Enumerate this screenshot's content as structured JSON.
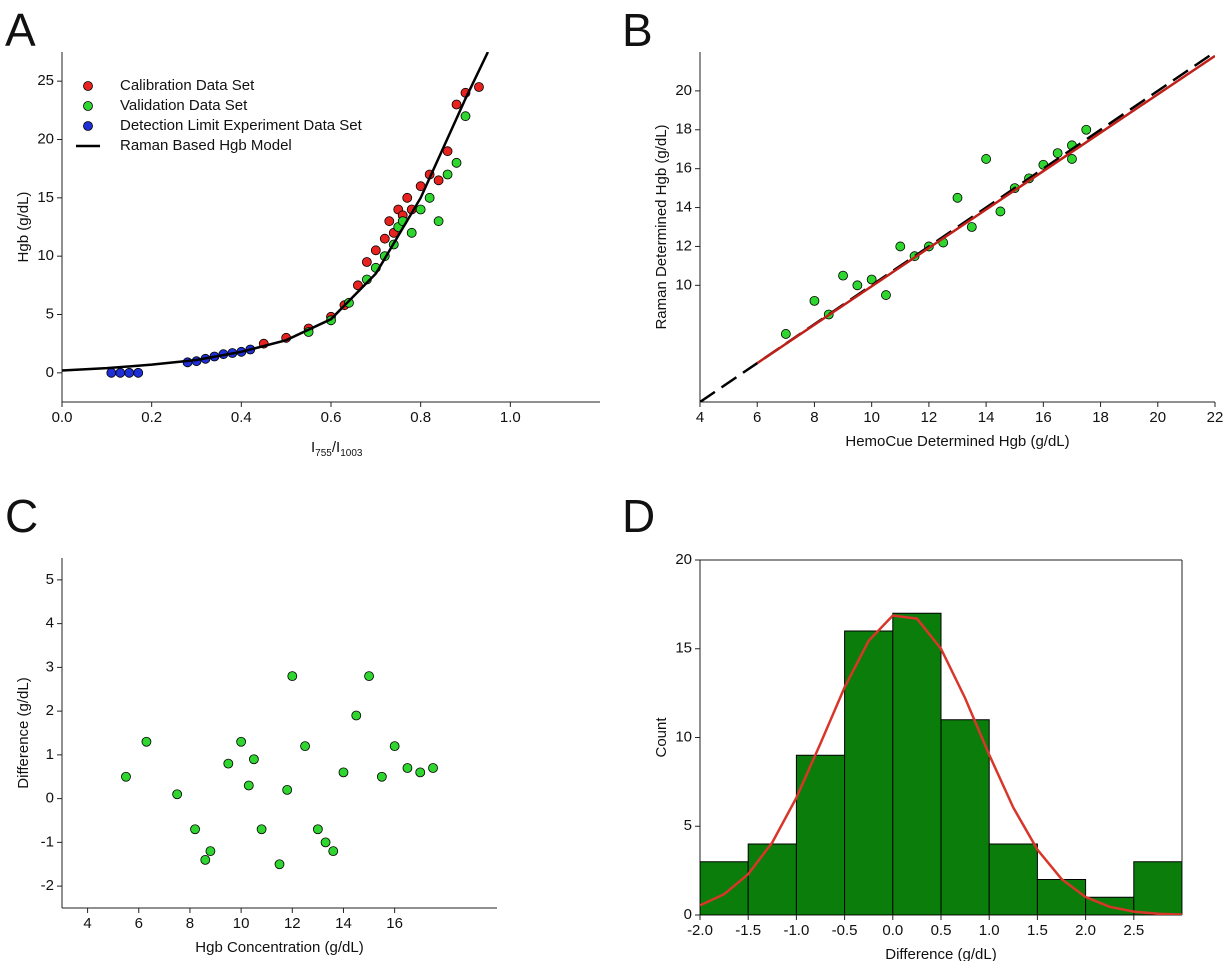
{
  "chart_data": [
    {
      "type": "scatter",
      "panel": "A",
      "xlabel_parts": [
        "I",
        "755",
        "/I",
        "1003"
      ],
      "ylabel": "Hgb (g/dL)",
      "xlim": [
        0,
        1.2
      ],
      "ylim": [
        -2.5,
        27.5
      ],
      "xticks": [
        {
          "value": 0,
          "label": "0.0"
        },
        {
          "value": 0.2,
          "label": "0.2"
        },
        {
          "value": 0.4,
          "label": "0.4"
        },
        {
          "value": 0.6,
          "label": "0.6"
        },
        {
          "value": 0.8,
          "label": "0.8"
        },
        {
          "value": 1,
          "label": "1.0"
        }
      ],
      "yticks": [
        0,
        5,
        10,
        15,
        20,
        25
      ],
      "legend": "upper left",
      "grid": false,
      "series": [
        {
          "name": "Calibration Data Set",
          "kind": "scatter",
          "color": "#e8231f",
          "x": [
            0.45,
            0.5,
            0.55,
            0.6,
            0.63,
            0.66,
            0.68,
            0.7,
            0.72,
            0.73,
            0.74,
            0.75,
            0.76,
            0.77,
            0.78,
            0.8,
            0.82,
            0.84,
            0.86,
            0.88,
            0.9,
            0.93
          ],
          "values": [
            2.5,
            3.0,
            3.8,
            4.8,
            5.8,
            7.5,
            9.5,
            10.5,
            11.5,
            13,
            12,
            14,
            13.5,
            15,
            14,
            16,
            17,
            16.5,
            19,
            23,
            24,
            24.5
          ]
        },
        {
          "name": "Validation Data Set",
          "kind": "scatter",
          "color": "#2fd62f",
          "x": [
            0.55,
            0.6,
            0.64,
            0.68,
            0.7,
            0.72,
            0.74,
            0.75,
            0.76,
            0.78,
            0.8,
            0.82,
            0.84,
            0.86,
            0.88,
            0.9
          ],
          "values": [
            3.5,
            4.5,
            6,
            8,
            9,
            10,
            11,
            12.5,
            13,
            12,
            14,
            15,
            13,
            17,
            18,
            22
          ]
        },
        {
          "name": "Detection Limit Experiment Data Set",
          "kind": "scatter",
          "color": "#1f2fd6",
          "x": [
            0.11,
            0.13,
            0.15,
            0.17,
            0.28,
            0.3,
            0.32,
            0.34,
            0.36,
            0.38,
            0.4,
            0.42
          ],
          "values": [
            0,
            0,
            0,
            0,
            0.9,
            1.0,
            1.2,
            1.4,
            1.6,
            1.7,
            1.8,
            2.0
          ]
        },
        {
          "name": "Raman Based Hgb Model",
          "kind": "line",
          "color": "#000000",
          "x": [
            0,
            0.1,
            0.2,
            0.3,
            0.4,
            0.5,
            0.6,
            0.7,
            0.8,
            0.9,
            0.95
          ],
          "values": [
            0.2,
            0.4,
            0.7,
            1.1,
            1.8,
            2.8,
            4.6,
            8.5,
            15,
            23.5,
            27.5
          ]
        }
      ]
    },
    {
      "type": "scatter",
      "panel": "B",
      "xlabel": "HemoCue Determined Hgb (g/dL)",
      "ylabel": "Raman Determined Hgb (g/dL)",
      "xlim": [
        4,
        22
      ],
      "ylim": [
        4,
        22
      ],
      "xticks": [
        4,
        6,
        8,
        10,
        12,
        14,
        16,
        18,
        20,
        22
      ],
      "yticks": [
        10,
        12,
        14,
        16,
        18,
        20
      ],
      "grid": false,
      "series": [
        {
          "kind": "scatter",
          "color": "#2fd62f",
          "x": [
            7,
            8,
            8.5,
            9,
            9.5,
            10,
            10.5,
            11,
            11.5,
            12,
            12.5,
            13,
            13.5,
            14,
            14.5,
            15,
            15.5,
            16,
            16.5,
            17,
            17,
            17.5
          ],
          "values": [
            7.5,
            9.2,
            8.5,
            10.5,
            10,
            10.3,
            9.5,
            12,
            11.5,
            12,
            12.2,
            14.5,
            13,
            16.5,
            13.8,
            15,
            15.5,
            16.2,
            16.8,
            17.2,
            16.5,
            18
          ]
        },
        {
          "kind": "line",
          "dash": true,
          "color": "#000000",
          "x": [
            4,
            22
          ],
          "values": [
            4,
            22
          ]
        },
        {
          "kind": "line",
          "color": "#c0201a",
          "x": [
            6,
            22
          ],
          "values": [
            6,
            21.8
          ]
        }
      ]
    },
    {
      "type": "scatter",
      "panel": "C",
      "xlabel": "Hgb Concentration (g/dL)",
      "ylabel": "Difference (g/dL)",
      "xlim": [
        3,
        20
      ],
      "ylim": [
        -2.5,
        5.5
      ],
      "xticks": [
        4,
        6,
        8,
        10,
        12,
        14,
        16
      ],
      "yticks": [
        -2,
        -1,
        0,
        1,
        2,
        3,
        4,
        5
      ],
      "grid": false,
      "series": [
        {
          "kind": "scatter",
          "color": "#2fd62f",
          "x": [
            5.5,
            6.3,
            7.5,
            8.2,
            8.6,
            8.8,
            9.5,
            10,
            10.3,
            10.5,
            10.8,
            11.5,
            11.8,
            12,
            12.5,
            13,
            13.3,
            13.6,
            14,
            14.5,
            15,
            15.5,
            16,
            16.5,
            17,
            17.5
          ],
          "values": [
            0.5,
            1.3,
            0.1,
            -0.7,
            -1.4,
            -1.2,
            0.8,
            1.3,
            0.3,
            0.9,
            -0.7,
            -1.5,
            0.2,
            2.8,
            1.2,
            -0.7,
            -1.0,
            -1.2,
            0.6,
            1.9,
            2.8,
            0.5,
            1.2,
            0.7,
            0.6,
            0.7
          ]
        }
      ]
    },
    {
      "type": "histogram",
      "panel": "D",
      "xlabel": "Difference (g/dL)",
      "ylabel": "Count",
      "xlim": [
        -2,
        3
      ],
      "ylim": [
        0,
        20
      ],
      "xticks": [
        {
          "value": -2,
          "label": "-2.0"
        },
        -1.5,
        {
          "value": -1,
          "label": "-1.0"
        },
        -0.5,
        {
          "value": 0,
          "label": "0.0"
        },
        0.5,
        {
          "value": 1,
          "label": "1.0"
        },
        1.5,
        {
          "value": 2,
          "label": "2.0"
        },
        2.5
      ],
      "yticks": [
        0,
        5,
        10,
        15,
        20
      ],
      "grid": false,
      "bins": [
        -2,
        -1.5,
        -1,
        -0.5,
        0,
        0.5,
        1,
        1.5,
        2,
        2.5,
        3
      ],
      "counts": [
        3,
        4,
        9,
        16,
        17,
        11,
        4,
        2,
        1,
        3
      ],
      "color": "#0a7d0a",
      "series": [
        {
          "kind": "line",
          "color": "#d8362a",
          "x": [
            -2,
            -1.75,
            -1.5,
            -1.25,
            -1,
            -0.75,
            -0.5,
            -0.25,
            0,
            0.25,
            0.5,
            0.75,
            1,
            1.25,
            1.5,
            1.75,
            2,
            2.25,
            2.5,
            2.75,
            3
          ],
          "values": [
            0.54,
            1.17,
            2.3,
            4.09,
            6.61,
            9.67,
            12.83,
            15.45,
            16.87,
            16.7,
            15.0,
            12.22,
            9.03,
            6.05,
            3.68,
            2.03,
            1.01,
            0.46,
            0.19,
            0.07,
            0.02
          ]
        }
      ]
    }
  ]
}
